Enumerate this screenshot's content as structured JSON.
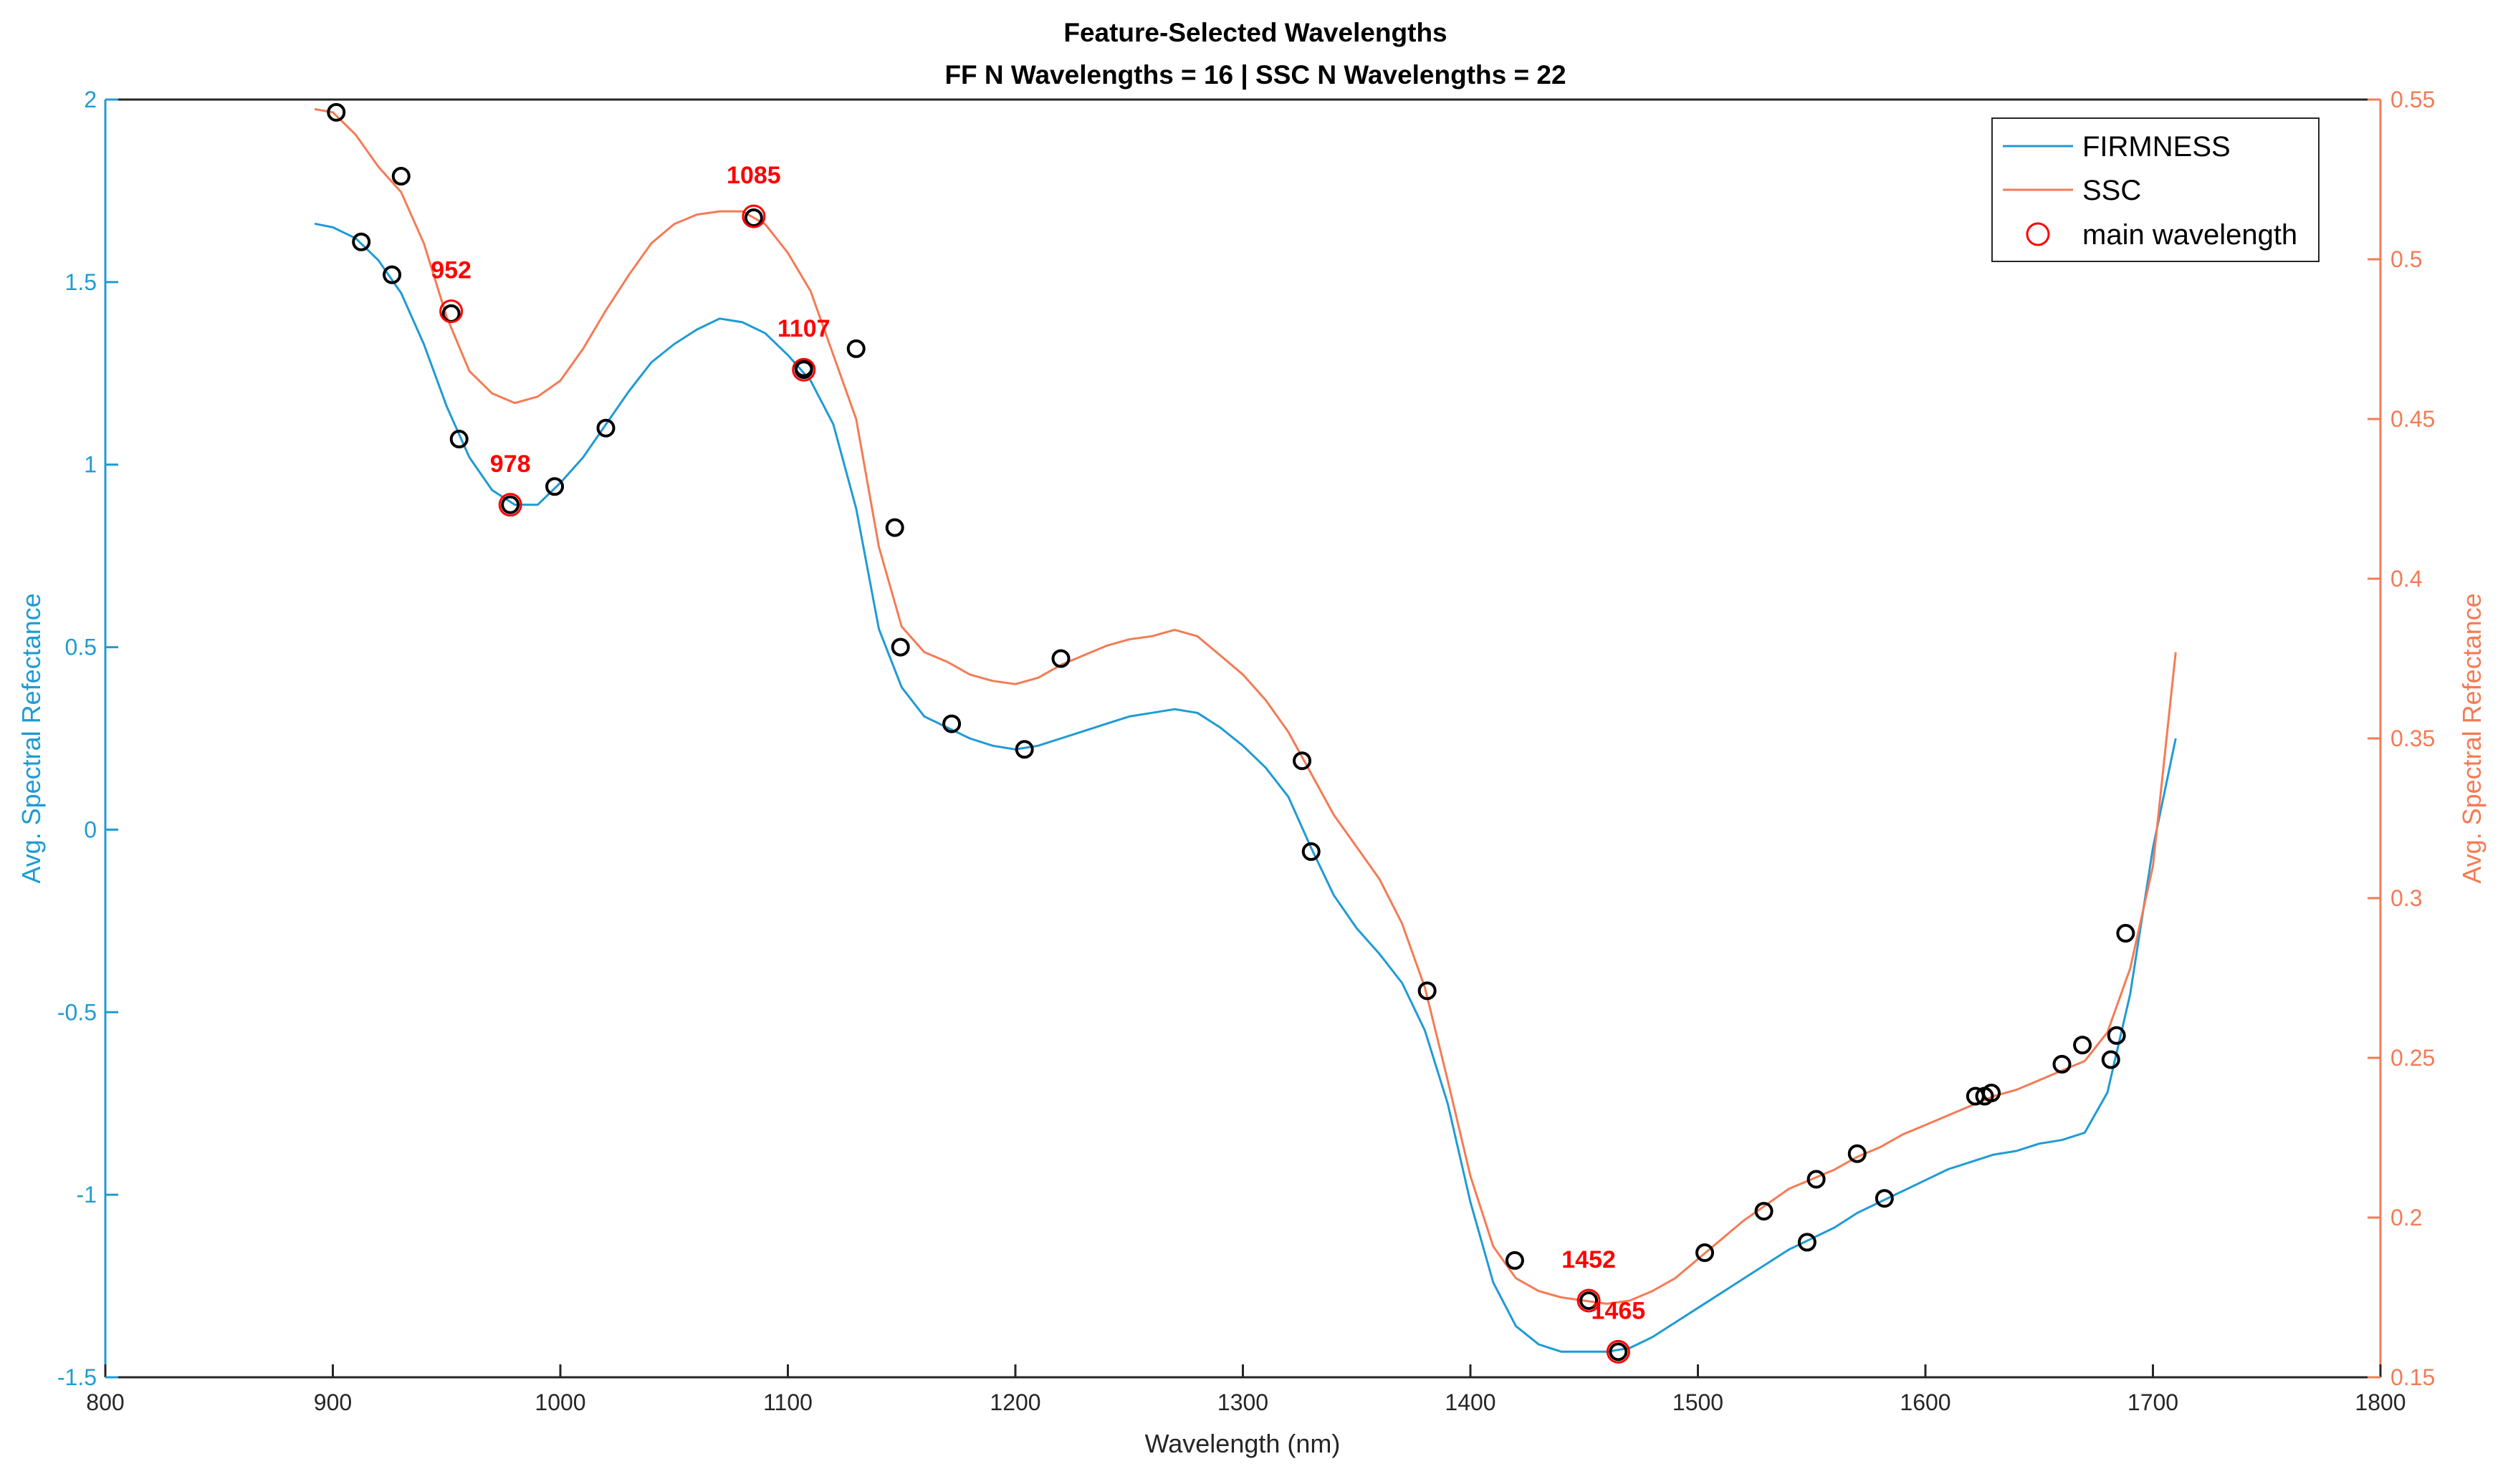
{
  "chart_data": {
    "type": "line",
    "title": "Feature-Selected Wavelengths",
    "subtitle": "FF N Wavelengths = 16 | SSC N Wavelengths = 22",
    "xlabel": "Wavelength (nm)",
    "ylabel_left": "Avg. Spectral Refectance",
    "ylabel_right": "Avg. Spectral Refectance",
    "xlim": [
      800,
      1800
    ],
    "ylim_left": [
      -1.5,
      2
    ],
    "ylim_right": [
      0.15,
      0.55
    ],
    "x_ticks": [
      "800",
      "900",
      "1000",
      "1100",
      "1200",
      "1300",
      "1400",
      "1500",
      "1600",
      "1700",
      "1800"
    ],
    "y_ticks_left": [
      "-1.5",
      "-1",
      "-0.5",
      "0",
      "0.5",
      "1",
      "1.5",
      "2"
    ],
    "y_ticks_right": [
      "0.15",
      "0.2",
      "0.25",
      "0.3",
      "0.35",
      "0.4",
      "0.45",
      "0.5",
      "0.55"
    ],
    "grid": false,
    "legend_position": "top-right",
    "colors": {
      "firmness": "#1f9bd4",
      "ssc": "#f47b55",
      "marker": "#000000",
      "main": "#ff0000",
      "left_axis": "#1f9bd4",
      "right_axis": "#f47b55"
    },
    "series": [
      {
        "name": "FIRMNESS",
        "axis": "left",
        "x": [
          892,
          900,
          910,
          920,
          930,
          940,
          950,
          960,
          970,
          980,
          990,
          1000,
          1010,
          1020,
          1030,
          1040,
          1050,
          1060,
          1070,
          1080,
          1090,
          1100,
          1110,
          1120,
          1130,
          1140,
          1150,
          1160,
          1170,
          1180,
          1190,
          1200,
          1210,
          1220,
          1230,
          1240,
          1250,
          1260,
          1270,
          1280,
          1290,
          1300,
          1310,
          1320,
          1330,
          1340,
          1350,
          1360,
          1370,
          1380,
          1390,
          1400,
          1410,
          1420,
          1430,
          1440,
          1450,
          1460,
          1470,
          1480,
          1490,
          1500,
          1510,
          1520,
          1530,
          1540,
          1550,
          1560,
          1570,
          1580,
          1590,
          1600,
          1610,
          1620,
          1630,
          1640,
          1650,
          1660,
          1670,
          1680,
          1690,
          1700,
          1710
        ],
        "y": [
          1.66,
          1.65,
          1.62,
          1.56,
          1.47,
          1.33,
          1.16,
          1.02,
          0.93,
          0.89,
          0.89,
          0.95,
          1.02,
          1.11,
          1.2,
          1.28,
          1.33,
          1.37,
          1.4,
          1.39,
          1.36,
          1.3,
          1.23,
          1.11,
          0.88,
          0.55,
          0.39,
          0.31,
          0.28,
          0.25,
          0.23,
          0.22,
          0.23,
          0.25,
          0.27,
          0.29,
          0.31,
          0.32,
          0.33,
          0.32,
          0.28,
          0.23,
          0.17,
          0.09,
          -0.05,
          -0.18,
          -0.27,
          -0.34,
          -0.42,
          -0.55,
          -0.75,
          -1.02,
          -1.24,
          -1.36,
          -1.41,
          -1.43,
          -1.43,
          -1.43,
          -1.42,
          -1.39,
          -1.35,
          -1.31,
          -1.27,
          -1.23,
          -1.19,
          -1.15,
          -1.12,
          -1.09,
          -1.05,
          -1.02,
          -0.99,
          -0.96,
          -0.93,
          -0.91,
          -0.89,
          -0.88,
          -0.86,
          -0.85,
          -0.83,
          -0.72,
          -0.45,
          -0.05,
          0.25
        ]
      },
      {
        "name": "SSC",
        "axis": "right",
        "x": [
          892,
          900,
          910,
          920,
          930,
          940,
          950,
          960,
          970,
          980,
          990,
          1000,
          1010,
          1020,
          1030,
          1040,
          1050,
          1060,
          1070,
          1080,
          1090,
          1100,
          1110,
          1120,
          1130,
          1140,
          1150,
          1160,
          1170,
          1180,
          1190,
          1200,
          1210,
          1220,
          1230,
          1240,
          1250,
          1260,
          1270,
          1280,
          1290,
          1300,
          1310,
          1320,
          1330,
          1340,
          1350,
          1360,
          1370,
          1380,
          1390,
          1400,
          1410,
          1420,
          1430,
          1440,
          1450,
          1460,
          1470,
          1480,
          1490,
          1500,
          1510,
          1520,
          1530,
          1540,
          1550,
          1560,
          1570,
          1580,
          1590,
          1600,
          1610,
          1620,
          1630,
          1640,
          1650,
          1660,
          1670,
          1680,
          1690,
          1700,
          1710
        ],
        "y": [
          0.547,
          0.546,
          0.539,
          0.529,
          0.521,
          0.505,
          0.482,
          0.465,
          0.458,
          0.455,
          0.457,
          0.462,
          0.472,
          0.484,
          0.495,
          0.505,
          0.511,
          0.514,
          0.515,
          0.515,
          0.511,
          0.502,
          0.49,
          0.47,
          0.45,
          0.41,
          0.385,
          0.377,
          0.374,
          0.37,
          0.368,
          0.367,
          0.369,
          0.373,
          0.376,
          0.379,
          0.381,
          0.382,
          0.384,
          0.382,
          0.376,
          0.37,
          0.362,
          0.352,
          0.339,
          0.326,
          0.316,
          0.306,
          0.292,
          0.272,
          0.243,
          0.213,
          0.191,
          0.181,
          0.177,
          0.175,
          0.174,
          0.173,
          0.174,
          0.177,
          0.181,
          0.187,
          0.193,
          0.199,
          0.204,
          0.209,
          0.212,
          0.215,
          0.219,
          0.222,
          0.226,
          0.229,
          0.232,
          0.235,
          0.238,
          0.24,
          0.243,
          0.246,
          0.249,
          0.258,
          0.278,
          0.31,
          0.377
        ]
      }
    ],
    "selected_points": {
      "firmness": [
        [
          912.5,
          1.61
        ],
        [
          926,
          1.52
        ],
        [
          955.5,
          1.07
        ],
        [
          978,
          0.89
        ],
        [
          997.5,
          0.94
        ],
        [
          1020,
          1.1
        ],
        [
          1107,
          1.26
        ],
        [
          1149.5,
          0.5
        ],
        [
          1172,
          0.29
        ],
        [
          1204,
          0.22
        ],
        [
          1330,
          -0.06
        ],
        [
          1419.5,
          -1.18
        ],
        [
          1465,
          -1.43
        ],
        [
          1548,
          -1.13
        ],
        [
          1582,
          -1.01
        ],
        [
          1681.5,
          -0.63
        ]
      ],
      "ssc": [
        [
          901.5,
          0.546
        ],
        [
          930,
          0.526
        ],
        [
          952,
          0.483
        ],
        [
          1085,
          0.513
        ],
        [
          1107,
          0.466
        ],
        [
          1130,
          0.472
        ],
        [
          1147,
          0.416
        ],
        [
          1220,
          0.375
        ],
        [
          1326,
          0.343
        ],
        [
          1381,
          0.271
        ],
        [
          1452,
          0.174
        ],
        [
          1503,
          0.189
        ],
        [
          1529,
          0.202
        ],
        [
          1552,
          0.212
        ],
        [
          1570,
          0.22
        ],
        [
          1622,
          0.238
        ],
        [
          1626,
          0.238
        ],
        [
          1629,
          0.239
        ],
        [
          1660,
          0.248
        ],
        [
          1669,
          0.254
        ],
        [
          1684,
          0.257
        ],
        [
          1688,
          0.289
        ]
      ]
    },
    "main_wavelengths": [
      {
        "label": "952",
        "x": 952,
        "y": 1.42
      },
      {
        "label": "978",
        "x": 978,
        "y": 0.89
      },
      {
        "label": "1085",
        "x": 1085,
        "y": 1.68
      },
      {
        "label": "1107",
        "x": 1107,
        "y": 1.26
      },
      {
        "label": "1452",
        "x": 1452,
        "y": -1.29
      },
      {
        "label": "1465",
        "x": 1465,
        "y": -1.43
      }
    ],
    "legend": [
      "FIRMNESS",
      "SSC",
      "main wavelength"
    ]
  }
}
